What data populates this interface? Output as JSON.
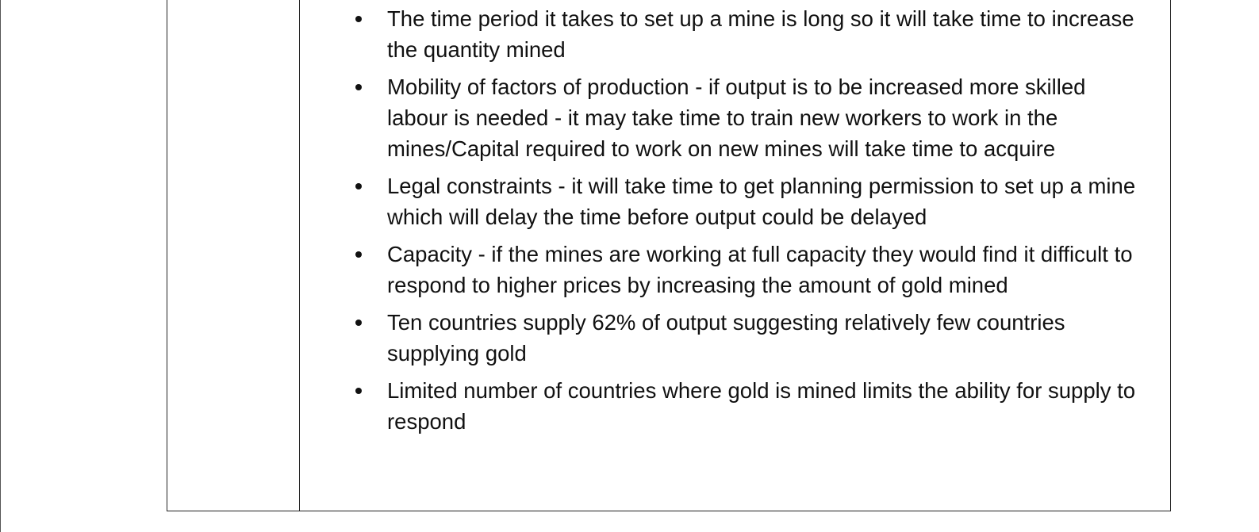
{
  "list_items": [
    "The time period it takes to set up a mine is long so it will take time to increase the quantity mined",
    "Mobility of factors of production - if output is to be increased more skilled labour is needed - it may take time to train new workers to work in the mines/Capital required to work on new mines will take time to acquire",
    "Legal constraints - it will take time to get planning permission to set up a mine which will delay the time before output could be delayed",
    "Capacity - if the mines are working at full capacity they would find it difficult to respond to higher prices by increasing the amount of gold mined",
    "Ten countries supply 62% of output suggesting relatively few countries supplying gold",
    "Limited number of countries where gold is mined limits the ability for supply to respond"
  ]
}
